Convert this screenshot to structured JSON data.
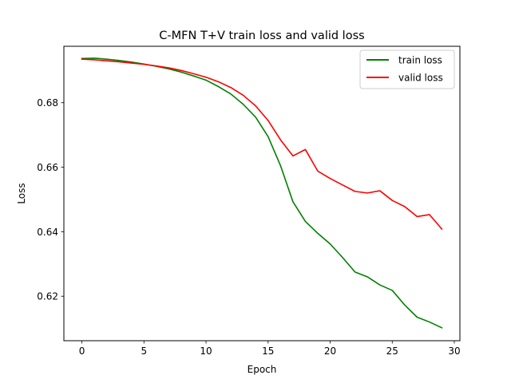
{
  "chart_data": {
    "type": "line",
    "title": "C-MFN T+V train loss and valid loss",
    "xlabel": "Epoch",
    "ylabel": "Loss",
    "xlim": [
      -1.45,
      30.45
    ],
    "ylim": [
      0.6062,
      0.6975
    ],
    "xticks": [
      0,
      5,
      10,
      15,
      20,
      25,
      30
    ],
    "yticks": [
      0.62,
      0.64,
      0.66,
      0.68
    ],
    "ytick_labels": [
      "0.62",
      "0.64",
      "0.66",
      "0.68"
    ],
    "grid": false,
    "legend_position": "upper right",
    "x": [
      0,
      1,
      2,
      3,
      4,
      5,
      6,
      7,
      8,
      9,
      10,
      11,
      12,
      13,
      14,
      15,
      16,
      17,
      18,
      19,
      20,
      21,
      22,
      23,
      24,
      25,
      26,
      27,
      28,
      29
    ],
    "series": [
      {
        "name": "train loss",
        "color": "#008000",
        "values": [
          0.6937,
          0.6938,
          0.6935,
          0.6931,
          0.6926,
          0.692,
          0.6913,
          0.6905,
          0.6895,
          0.6883,
          0.687,
          0.685,
          0.6827,
          0.6795,
          0.6755,
          0.6695,
          0.6605,
          0.6493,
          0.6432,
          0.6395,
          0.6362,
          0.632,
          0.6275,
          0.626,
          0.6235,
          0.6218,
          0.6173,
          0.6135,
          0.612,
          0.6102
        ]
      },
      {
        "name": "valid loss",
        "color": "#ff0000",
        "values": [
          0.6935,
          0.6933,
          0.693,
          0.6927,
          0.6923,
          0.6919,
          0.6914,
          0.6908,
          0.69,
          0.689,
          0.6879,
          0.6865,
          0.6847,
          0.6823,
          0.679,
          0.6745,
          0.6685,
          0.6635,
          0.6655,
          0.6588,
          0.6565,
          0.6545,
          0.6525,
          0.652,
          0.6527,
          0.6497,
          0.6478,
          0.6447,
          0.6453,
          0.6408
        ]
      }
    ]
  }
}
